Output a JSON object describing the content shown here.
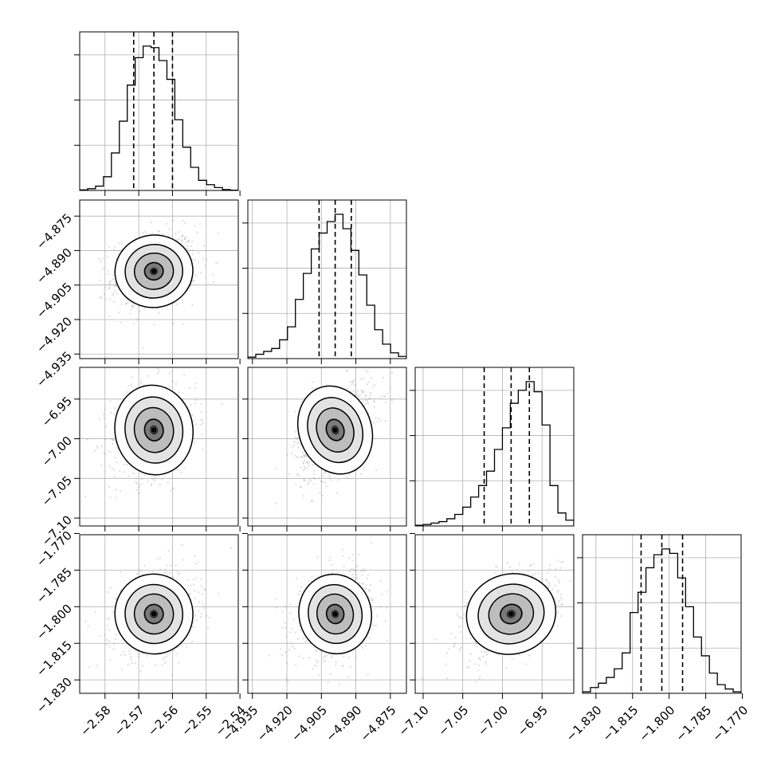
{
  "chart_data": {
    "type": "corner",
    "title": "",
    "parameters": [
      {
        "ticks": [
          -2.58,
          -2.57,
          -2.56,
          -2.55,
          -2.54
        ],
        "tick_labels": [
          "−2.58",
          "−2.57",
          "−2.56",
          "−2.55",
          "−2.54"
        ],
        "range": [
          -2.5875,
          -2.5405
        ],
        "quantiles": [
          -2.5715,
          -2.5655,
          -2.56
        ],
        "median": -2.5655,
        "sigma": 0.0055
      },
      {
        "ticks": [
          -4.935,
          -4.92,
          -4.905,
          -4.89,
          -4.875
        ],
        "tick_labels": [
          "−4.935",
          "−4.920",
          "−4.905",
          "−4.890",
          "−4.875"
        ],
        "range": [
          -4.937,
          -4.868
        ],
        "quantiles": [
          -4.906,
          -4.899,
          -4.892
        ],
        "median": -4.899,
        "sigma": 0.0075
      },
      {
        "ticks": [
          -7.1,
          -7.05,
          -7.0,
          -6.95
        ],
        "tick_labels": [
          "−7.10",
          "−7.05",
          "−7.00",
          "−6.95"
        ],
        "range": [
          -7.11,
          -6.91
        ],
        "quantiles": [
          -7.023,
          -6.989,
          -6.966
        ],
        "median": -6.989,
        "sigma": 0.027
      },
      {
        "ticks": [
          -1.83,
          -1.815,
          -1.8,
          -1.785,
          -1.77
        ],
        "tick_labels": [
          "−1.830",
          "−1.815",
          "−1.800",
          "−1.785",
          "−1.770"
        ],
        "range": [
          -1.8355,
          -1.7705
        ],
        "quantiles": [
          -1.8115,
          -1.803,
          -1.7945
        ],
        "median": -1.803,
        "sigma": 0.0078
      }
    ],
    "histograms": [
      [
        0.004,
        0.012,
        0.03,
        0.095,
        0.26,
        0.48,
        0.73,
        0.92,
        1.0,
        0.99,
        0.9,
        0.77,
        0.49,
        0.3,
        0.16,
        0.07,
        0.04,
        0.02,
        0.006,
        0.002
      ],
      [
        0.01,
        0.03,
        0.05,
        0.07,
        0.13,
        0.22,
        0.41,
        0.59,
        0.76,
        0.87,
        0.95,
        1.0,
        0.9,
        0.75,
        0.58,
        0.37,
        0.2,
        0.1,
        0.04,
        0.015
      ],
      [
        0.005,
        0.01,
        0.02,
        0.03,
        0.05,
        0.08,
        0.13,
        0.2,
        0.28,
        0.38,
        0.53,
        0.68,
        0.85,
        0.94,
        1.0,
        0.93,
        0.7,
        0.28,
        0.09,
        0.04
      ],
      [
        0.01,
        0.04,
        0.07,
        0.11,
        0.17,
        0.28,
        0.56,
        0.7,
        0.87,
        0.96,
        1.0,
        0.97,
        0.8,
        0.6,
        0.39,
        0.26,
        0.14,
        0.06,
        0.03,
        0.01
      ]
    ],
    "correlations": {
      "1-0": 0.2,
      "2-0": 0.2,
      "2-1": 0.45,
      "3-0": 0.25,
      "3-1": 0.3,
      "3-2": 0.45
    },
    "contour_levels": [
      "0.5 sigma",
      "1 sigma",
      "1.5 sigma",
      "2 sigma"
    ],
    "grid": true,
    "quantile_lines": "dashed"
  }
}
